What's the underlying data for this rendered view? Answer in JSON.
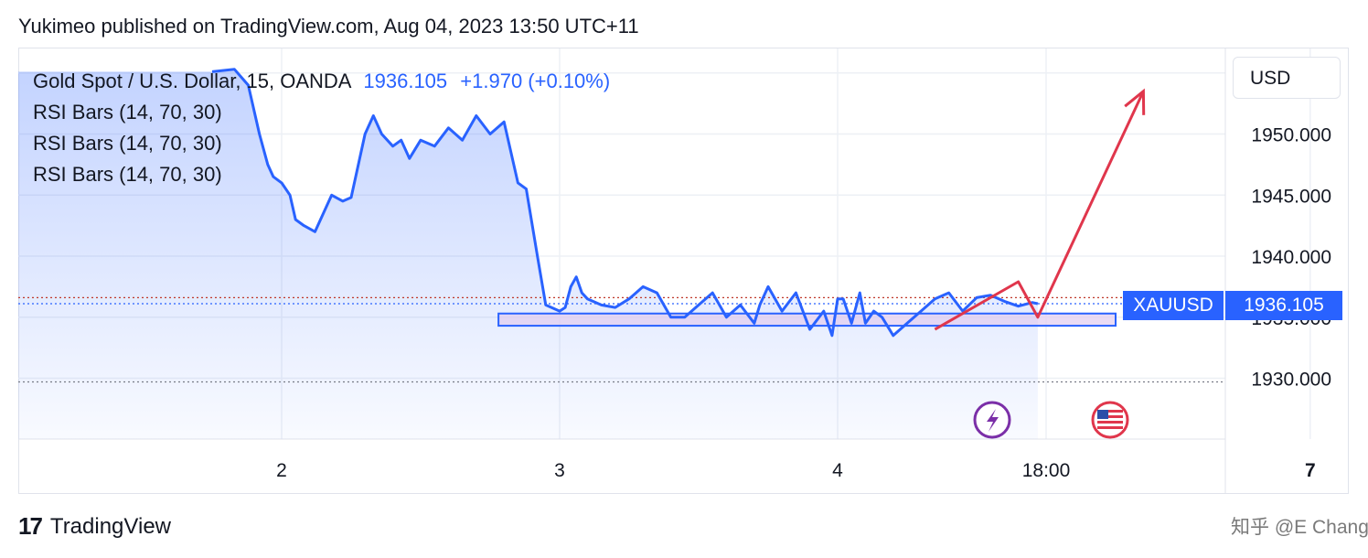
{
  "publisher_line": "Yukimeo published on TradingView.com, Aug 04, 2023 13:50 UTC+11",
  "legend": {
    "symbol": "Gold Spot / U.S. Dollar, 15, OANDA",
    "price": "1936.105",
    "change": "+1.970 (+0.10%)",
    "indicators": [
      "RSI Bars (14, 70, 30)",
      "RSI Bars (14, 70, 30)",
      "RSI Bars (14, 70, 30)"
    ]
  },
  "currency": "USD",
  "price_tag": {
    "symbol": "XAUUSD",
    "value": "1936.105"
  },
  "footer": {
    "brand": "TradingView",
    "brand_mark": "17",
    "watermark": "知乎 @E Chang"
  },
  "colors": {
    "line": "#2962ff",
    "arrow": "#e0364c",
    "zone_fill": "#e1ccf0",
    "zone_border": "#2962ff",
    "event_purple": "#7b2fa8",
    "event_red": "#e0364c"
  },
  "icons": [
    "lightning-event-icon",
    "us-flag-event-icon"
  ],
  "chart_data": {
    "type": "line",
    "title": "",
    "xlabel": "",
    "ylabel": "",
    "x_ticks": [
      "2",
      "3",
      "4",
      "18:00",
      "7"
    ],
    "y_ticks": [
      1930,
      1935,
      1940,
      1945,
      1950
    ],
    "y_tick_labels": [
      "1930.000",
      "1935.000",
      "1940.000",
      "1945.000",
      "1950.000"
    ],
    "ylim": [
      1925,
      1955
    ],
    "xlim": [
      1.0,
      7.0
    ],
    "grid": true,
    "legend_position": "top-left",
    "series": [
      {
        "x": [
          1.75,
          1.83,
          1.88,
          1.92,
          1.95,
          1.97,
          2.0,
          2.03,
          2.05,
          2.08,
          2.12,
          2.15,
          2.18,
          2.22,
          2.25,
          2.3,
          2.33,
          2.36,
          2.4,
          2.43,
          2.46,
          2.5,
          2.55,
          2.6,
          2.65,
          2.7,
          2.75,
          2.8,
          2.85,
          2.88,
          2.92,
          2.95,
          3.0,
          3.02,
          3.04,
          3.06,
          3.08,
          3.1,
          3.15,
          3.2,
          3.25,
          3.3,
          3.35,
          3.4,
          3.45,
          3.5,
          3.55,
          3.6,
          3.65,
          3.7,
          3.72,
          3.75,
          3.8,
          3.85,
          3.9,
          3.95,
          3.98,
          4.0,
          4.02,
          4.05,
          4.08,
          4.1,
          4.13,
          4.16,
          4.2,
          4.25,
          4.3,
          4.35,
          4.4,
          4.45,
          4.5,
          4.55,
          4.6,
          4.65,
          4.7,
          4.72
        ],
        "y": [
          1955.1,
          1955.3,
          1954.0,
          1950.0,
          1947.5,
          1946.5,
          1946.0,
          1945.0,
          1943.0,
          1942.5,
          1942.0,
          1943.5,
          1945.0,
          1944.5,
          1944.8,
          1950.0,
          1951.5,
          1950.0,
          1949.0,
          1949.5,
          1948.0,
          1949.5,
          1949.0,
          1950.5,
          1949.5,
          1951.5,
          1950.0,
          1951.0,
          1946.0,
          1945.5,
          1940.0,
          1936.0,
          1935.5,
          1935.8,
          1937.5,
          1938.3,
          1937.0,
          1936.5,
          1936.0,
          1935.8,
          1936.5,
          1937.5,
          1937.0,
          1935.0,
          1935.0,
          1936.0,
          1937.0,
          1935.0,
          1936.0,
          1934.5,
          1936.0,
          1937.5,
          1935.5,
          1937.0,
          1934.0,
          1935.5,
          1933.5,
          1936.5,
          1936.5,
          1934.5,
          1937.0,
          1934.5,
          1935.5,
          1935.0,
          1933.5,
          1934.5,
          1935.5,
          1936.5,
          1937.0,
          1935.5,
          1936.6,
          1936.8,
          1936.3,
          1935.9,
          1936.2,
          1936.105
        ]
      }
    ],
    "annotations": {
      "zone": {
        "x0": 2.78,
        "x1": 5.0,
        "y0": 1934.3,
        "y1": 1935.3
      },
      "arrow": [
        [
          4.35,
          1934.0
        ],
        [
          4.65,
          1937.9
        ],
        [
          4.72,
          1935.0
        ],
        [
          5.1,
          1953.5
        ]
      ],
      "dotted_levels": [
        1936.105,
        1936.6,
        1929.7
      ]
    }
  }
}
